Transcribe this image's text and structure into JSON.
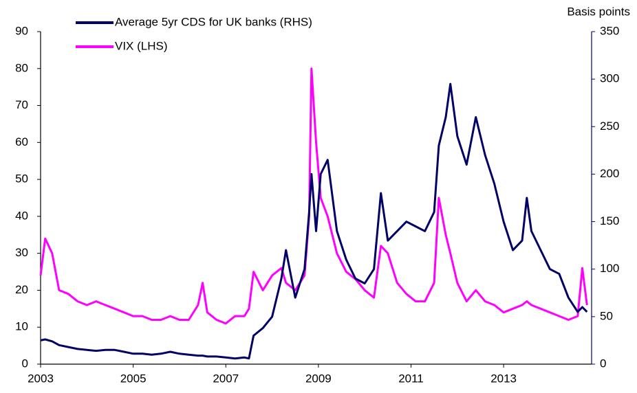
{
  "chart_data": {
    "type": "line",
    "y2_axis_label": "Basis points",
    "x": [
      2003.0,
      2003.1,
      2003.25,
      2003.4,
      2003.6,
      2003.8,
      2004.0,
      2004.2,
      2004.4,
      2004.6,
      2004.8,
      2005.0,
      2005.2,
      2005.4,
      2005.6,
      2005.8,
      2006.0,
      2006.2,
      2006.4,
      2006.5,
      2006.6,
      2006.8,
      2007.0,
      2007.2,
      2007.4,
      2007.5,
      2007.6,
      2007.8,
      2008.0,
      2008.2,
      2008.3,
      2008.5,
      2008.7,
      2008.8,
      2008.85,
      2008.95,
      2009.05,
      2009.2,
      2009.4,
      2009.6,
      2009.8,
      2010.0,
      2010.2,
      2010.35,
      2010.5,
      2010.7,
      2010.9,
      2011.1,
      2011.3,
      2011.5,
      2011.6,
      2011.75,
      2011.85,
      2012.0,
      2012.2,
      2012.4,
      2012.6,
      2012.8,
      2013.0,
      2013.2,
      2013.4,
      2013.5,
      2013.6,
      2013.8,
      2014.0,
      2014.2,
      2014.4,
      2014.6,
      2014.7,
      2014.8
    ],
    "series": [
      {
        "name": "Average 5yr CDS for UK banks (RHS)",
        "color": "#000066",
        "axis": "y2",
        "values": [
          25,
          26,
          24,
          20,
          18,
          16,
          15,
          14,
          15,
          15,
          13,
          11,
          11,
          10,
          11,
          13,
          11,
          10,
          9,
          9,
          8,
          8,
          7,
          6,
          7,
          6,
          30,
          38,
          50,
          90,
          120,
          70,
          100,
          160,
          200,
          140,
          200,
          215,
          140,
          110,
          90,
          85,
          100,
          180,
          130,
          140,
          150,
          145,
          140,
          160,
          230,
          260,
          295,
          240,
          210,
          260,
          220,
          190,
          150,
          120,
          130,
          175,
          140,
          120,
          100,
          95,
          70,
          55,
          60,
          55
        ]
      },
      {
        "name": "VIX (LHS)",
        "color": "#ff00ff",
        "values": [
          24,
          34,
          30,
          20,
          19,
          17,
          16,
          17,
          16,
          15,
          14,
          13,
          13,
          12,
          12,
          13,
          12,
          12,
          16,
          22,
          14,
          12,
          11,
          13,
          13,
          15,
          25,
          20,
          24,
          26,
          22,
          20,
          24,
          40,
          80,
          60,
          45,
          40,
          30,
          25,
          23,
          20,
          18,
          32,
          30,
          22,
          19,
          17,
          17,
          22,
          45,
          35,
          30,
          22,
          17,
          20,
          17,
          16,
          14,
          15,
          16,
          17,
          16,
          15,
          14,
          13,
          12,
          13,
          26,
          16
        ]
      }
    ],
    "xlim": [
      2003,
      2014.9
    ],
    "xticks": [
      2003,
      2005,
      2007,
      2009,
      2011,
      2013
    ],
    "ylim": [
      0,
      90
    ],
    "yticks": [
      0,
      10,
      20,
      30,
      40,
      50,
      60,
      70,
      80,
      90
    ],
    "y2lim": [
      0,
      350
    ],
    "y2ticks": [
      0,
      50,
      100,
      150,
      200,
      250,
      300,
      350
    ]
  }
}
